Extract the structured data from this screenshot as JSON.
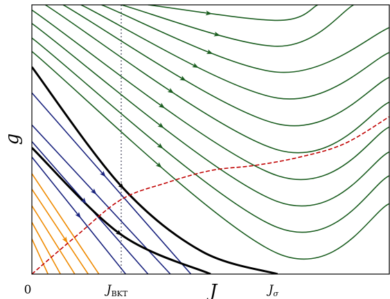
{
  "chart_data": {
    "type": "line",
    "title": "",
    "xlabel": "J",
    "ylabel": "g",
    "x_ticks": [
      {
        "x": 0.0,
        "label": "0"
      },
      {
        "x": 1.0,
        "label": "J_BKT",
        "main": "J",
        "sub": "BKT"
      },
      {
        "x": 2.75,
        "label": "J_σ",
        "main": "J",
        "sub": "σ"
      }
    ],
    "xlim": [
      0,
      4.0
    ],
    "ylim": [
      0,
      2.6
    ],
    "grid": false,
    "legend": false,
    "colors": {
      "flow_high": "#1b5e20",
      "flow_mid": "#1a237e",
      "flow_low": "#ef8a00",
      "separatrix": "#000000",
      "crossover": "#c00000",
      "vline": "#8a8a99"
    },
    "vline_x": 1.0,
    "series": [
      {
        "group": "flow_low",
        "points": [
          [
            0.0,
            0.34
          ],
          [
            0.18,
            0.0
          ]
        ]
      },
      {
        "group": "flow_low",
        "points": [
          [
            0.0,
            0.5
          ],
          [
            0.32,
            0.0
          ]
        ]
      },
      {
        "group": "flow_low",
        "points": [
          [
            0.0,
            0.66
          ],
          [
            0.48,
            0.0
          ]
        ]
      },
      {
        "group": "flow_low",
        "points": [
          [
            0.0,
            0.82
          ],
          [
            0.63,
            0.0
          ]
        ],
        "arrow_at": 0.6
      },
      {
        "group": "flow_low",
        "points": [
          [
            0.0,
            0.97
          ],
          [
            0.75,
            0.0
          ]
        ]
      },
      {
        "group": "flow_mid",
        "points": [
          [
            0.0,
            1.13
          ],
          [
            1.05,
            0.0
          ]
        ],
        "arrow_at": 0.5
      },
      {
        "group": "flow_mid",
        "points": [
          [
            0.0,
            1.28
          ],
          [
            1.3,
            0.0
          ]
        ],
        "arrow_at": 0.45
      },
      {
        "group": "flow_mid",
        "points": [
          [
            0.0,
            1.44
          ],
          [
            1.55,
            0.0
          ]
        ],
        "arrow_at": 0.45
      },
      {
        "group": "flow_mid",
        "points": [
          [
            0.0,
            1.75
          ],
          [
            1.78,
            0.0
          ]
        ],
        "arrow_at": 0.45
      },
      {
        "group": "separatrix",
        "points": [
          [
            0.0,
            1.22
          ],
          [
            1.0,
            0.38
          ],
          [
            2.0,
            0.0
          ]
        ],
        "arrow_at": 0.55
      },
      {
        "group": "separatrix",
        "points": [
          [
            0.0,
            2.0
          ],
          [
            1.0,
            0.85
          ],
          [
            1.9,
            0.22
          ],
          [
            2.75,
            0.0
          ]
        ],
        "arrow_at": 0.45
      },
      {
        "group": "flow_high",
        "points": [
          [
            0.0,
            2.15
          ],
          [
            2.75,
            0.2
          ],
          [
            4.0,
            0.68
          ]
        ],
        "arrow_at": 0.38
      },
      {
        "group": "flow_high",
        "points": [
          [
            0.0,
            2.28
          ],
          [
            2.75,
            0.45
          ],
          [
            4.0,
            0.95
          ]
        ],
        "arrow_at": 0.38
      },
      {
        "group": "flow_high",
        "points": [
          [
            0.0,
            2.42
          ],
          [
            2.75,
            0.7
          ],
          [
            4.0,
            1.18
          ]
        ],
        "arrow_at": 0.38
      },
      {
        "group": "flow_high",
        "points": [
          [
            0.0,
            2.55
          ],
          [
            2.75,
            0.95
          ],
          [
            4.0,
            1.42
          ]
        ],
        "arrow_at": 0.38
      },
      {
        "group": "flow_high",
        "points": [
          [
            0.15,
            2.6
          ],
          [
            2.75,
            1.2
          ],
          [
            4.0,
            1.66
          ]
        ],
        "arrow_at": 0.38
      },
      {
        "group": "flow_high",
        "points": [
          [
            0.35,
            2.6
          ],
          [
            2.75,
            1.45
          ],
          [
            4.0,
            1.9
          ]
        ],
        "arrow_at": 0.38
      },
      {
        "group": "flow_high",
        "points": [
          [
            0.55,
            2.6
          ],
          [
            2.75,
            1.7
          ],
          [
            4.0,
            2.14
          ]
        ],
        "arrow_at": 0.38
      },
      {
        "group": "flow_high",
        "points": [
          [
            0.78,
            2.6
          ],
          [
            2.75,
            1.95
          ],
          [
            4.0,
            2.38
          ]
        ],
        "arrow_at": 0.38
      },
      {
        "group": "flow_high",
        "points": [
          [
            1.0,
            2.6
          ],
          [
            2.75,
            2.2
          ],
          [
            3.6,
            2.6
          ]
        ],
        "arrow_at": 0.4
      },
      {
        "group": "flow_high",
        "points": [
          [
            1.3,
            2.6
          ],
          [
            2.75,
            2.45
          ],
          [
            3.2,
            2.6
          ]
        ],
        "arrow_at": 0.35
      },
      {
        "group": "crossover",
        "dashed": true,
        "points": [
          [
            0.0,
            0.0
          ],
          [
            0.5,
            0.37
          ],
          [
            1.0,
            0.72
          ],
          [
            1.5,
            0.88
          ],
          [
            2.0,
            1.0
          ],
          [
            2.5,
            1.05
          ],
          [
            3.0,
            1.13
          ],
          [
            3.5,
            1.26
          ],
          [
            4.0,
            1.52
          ]
        ]
      }
    ]
  }
}
